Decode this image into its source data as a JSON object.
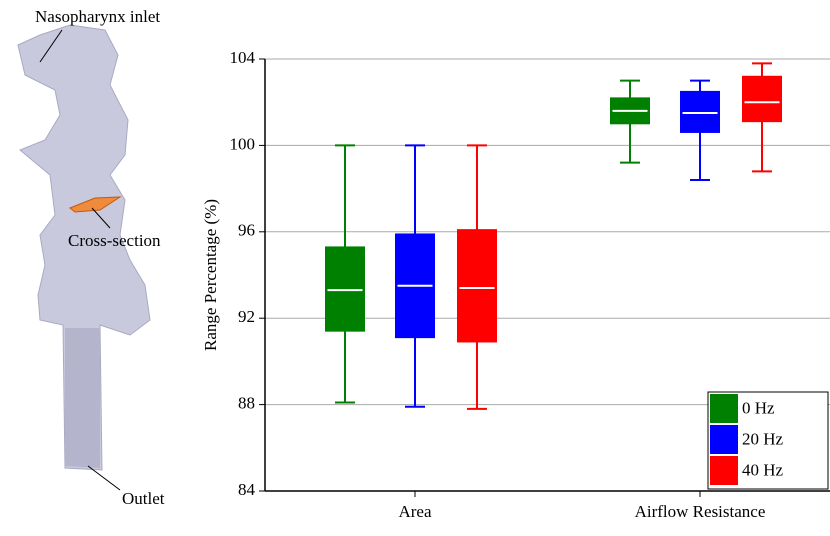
{
  "figure_labels": {
    "inlet": "Nasopharynx inlet",
    "cross_section": "Cross-section",
    "outlet": "Outlet"
  },
  "chart_data": {
    "type": "box",
    "y_label": "Range Percentage (%)",
    "categories": [
      "Area",
      "Airflow Resistance"
    ],
    "series": [
      {
        "name": "0 Hz",
        "color": "#008000",
        "min": [
          88.1,
          99.2
        ],
        "q1": [
          91.4,
          101.0
        ],
        "median": [
          93.3,
          101.6
        ],
        "q3": [
          95.3,
          102.2
        ],
        "max": [
          100,
          103.0
        ]
      },
      {
        "name": "20 Hz",
        "color": "#0000ff",
        "min": [
          87.9,
          98.4
        ],
        "q1": [
          91.1,
          100.6
        ],
        "median": [
          93.5,
          101.5
        ],
        "q3": [
          95.9,
          102.5
        ],
        "max": [
          100,
          103.0
        ]
      },
      {
        "name": "40 Hz",
        "color": "#ff0000",
        "min": [
          87.8,
          98.8
        ],
        "q1": [
          90.9,
          101.1
        ],
        "median": [
          93.4,
          102.0
        ],
        "q3": [
          96.1,
          103.2
        ],
        "max": [
          100,
          103.8
        ]
      }
    ],
    "ylim": [
      84,
      104
    ],
    "yticks": [
      84,
      88,
      92,
      96,
      100,
      104
    ],
    "grid": true,
    "legend": "bottom-right"
  }
}
